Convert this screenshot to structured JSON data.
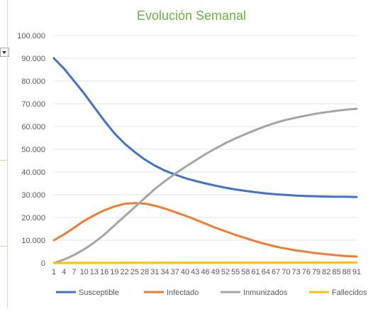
{
  "chart_data": {
    "type": "line",
    "title": "Evolución Semanal",
    "xlabel": "",
    "ylabel": "",
    "ylim": [
      0,
      100000
    ],
    "yticks": [
      0,
      10000,
      20000,
      30000,
      40000,
      50000,
      60000,
      70000,
      80000,
      90000,
      100000
    ],
    "ytick_labels": [
      "0",
      "10.000",
      "20.000",
      "30.000",
      "40.000",
      "50.000",
      "60.000",
      "70.000",
      "80.000",
      "90.000",
      "100.000"
    ],
    "x_range": [
      1,
      91
    ],
    "xtick_labels": [
      "1",
      "4",
      "7",
      "10",
      "13",
      "16",
      "19",
      "22",
      "25",
      "28",
      "31",
      "34",
      "37",
      "40",
      "43",
      "46",
      "49",
      "52",
      "55",
      "58",
      "61",
      "64",
      "67",
      "70",
      "73",
      "76",
      "79",
      "82",
      "85",
      "88",
      "91"
    ],
    "grid": "horizontal",
    "legend_position": "bottom",
    "series": [
      {
        "name": "Susceptible",
        "color": "#4472C4",
        "points": [
          [
            1,
            90000
          ],
          [
            4,
            85500
          ],
          [
            7,
            80000
          ],
          [
            10,
            74500
          ],
          [
            13,
            68500
          ],
          [
            16,
            62500
          ],
          [
            19,
            57000
          ],
          [
            22,
            52500
          ],
          [
            25,
            48800
          ],
          [
            28,
            45500
          ],
          [
            31,
            42800
          ],
          [
            34,
            40600
          ],
          [
            37,
            38900
          ],
          [
            40,
            37300
          ],
          [
            43,
            36100
          ],
          [
            46,
            35000
          ],
          [
            49,
            34000
          ],
          [
            52,
            33100
          ],
          [
            55,
            32300
          ],
          [
            58,
            31700
          ],
          [
            61,
            31100
          ],
          [
            64,
            30600
          ],
          [
            67,
            30200
          ],
          [
            70,
            29900
          ],
          [
            73,
            29600
          ],
          [
            76,
            29400
          ],
          [
            79,
            29300
          ],
          [
            82,
            29200
          ],
          [
            85,
            29100
          ],
          [
            88,
            29100
          ],
          [
            91,
            29000
          ]
        ]
      },
      {
        "name": "Infectado",
        "color": "#ED7D31",
        "points": [
          [
            1,
            10000
          ],
          [
            4,
            12500
          ],
          [
            7,
            15500
          ],
          [
            10,
            18500
          ],
          [
            13,
            21000
          ],
          [
            16,
            23200
          ],
          [
            19,
            24800
          ],
          [
            22,
            26000
          ],
          [
            25,
            26300
          ],
          [
            28,
            26100
          ],
          [
            31,
            25200
          ],
          [
            34,
            23900
          ],
          [
            37,
            22400
          ],
          [
            40,
            20800
          ],
          [
            43,
            19100
          ],
          [
            46,
            17300
          ],
          [
            49,
            15500
          ],
          [
            52,
            13900
          ],
          [
            55,
            12300
          ],
          [
            58,
            10900
          ],
          [
            61,
            9500
          ],
          [
            64,
            8300
          ],
          [
            67,
            7200
          ],
          [
            70,
            6300
          ],
          [
            73,
            5500
          ],
          [
            76,
            4900
          ],
          [
            79,
            4300
          ],
          [
            82,
            3800
          ],
          [
            85,
            3400
          ],
          [
            88,
            3000
          ],
          [
            91,
            2800
          ]
        ]
      },
      {
        "name": "Inmunizados",
        "color": "#A5A5A5",
        "points": [
          [
            1,
            0
          ],
          [
            4,
            1500
          ],
          [
            7,
            3500
          ],
          [
            10,
            6000
          ],
          [
            13,
            9000
          ],
          [
            16,
            12500
          ],
          [
            19,
            16500
          ],
          [
            22,
            20500
          ],
          [
            25,
            24500
          ],
          [
            28,
            28500
          ],
          [
            31,
            32500
          ],
          [
            34,
            36000
          ],
          [
            37,
            39200
          ],
          [
            40,
            42200
          ],
          [
            43,
            45000
          ],
          [
            46,
            47800
          ],
          [
            49,
            50300
          ],
          [
            52,
            52700
          ],
          [
            55,
            54800
          ],
          [
            58,
            56700
          ],
          [
            61,
            58500
          ],
          [
            64,
            60200
          ],
          [
            67,
            61700
          ],
          [
            70,
            62900
          ],
          [
            73,
            63900
          ],
          [
            76,
            64800
          ],
          [
            79,
            65700
          ],
          [
            82,
            66300
          ],
          [
            85,
            66900
          ],
          [
            88,
            67400
          ],
          [
            91,
            67800
          ]
        ]
      },
      {
        "name": "Fallecidos",
        "color": "#FFC000",
        "points": [
          [
            1,
            0
          ],
          [
            91,
            200
          ]
        ]
      }
    ]
  }
}
